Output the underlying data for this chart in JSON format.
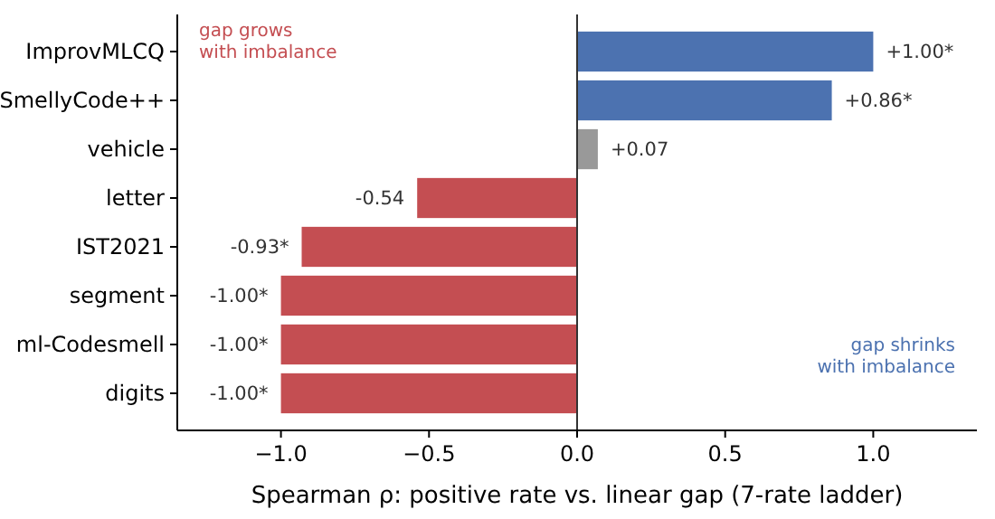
{
  "chart_data": {
    "type": "bar",
    "orientation": "horizontal",
    "categories": [
      "ImprovMLCQ",
      "SmellyCode++",
      "vehicle",
      "letter",
      "IST2021",
      "segment",
      "ml-Codesmell",
      "digits"
    ],
    "values": [
      1.0,
      0.86,
      0.07,
      -0.54,
      -0.93,
      -1.0,
      -1.0,
      -1.0
    ],
    "colors": [
      "#4c72b0",
      "#4c72b0",
      "#999999",
      "#c44e52",
      "#c44e52",
      "#c44e52",
      "#c44e52",
      "#c44e52"
    ],
    "value_labels": [
      "+1.00*",
      "+0.86*",
      "+0.07",
      "-0.54",
      "-0.93*",
      "-1.00*",
      "-1.00*",
      "-1.00*"
    ],
    "xlim": [
      -1.35,
      1.35
    ],
    "xticks": [
      {
        "value": -1,
        "label": "−1.0"
      },
      {
        "value": -0.5,
        "label": "−0.5"
      },
      {
        "value": 0,
        "label": "0.0"
      },
      {
        "value": 0.5,
        "label": "0.5"
      },
      {
        "value": 1,
        "label": "1.0"
      }
    ],
    "xlabel": "Spearman ρ: positive rate vs. linear gap (7-rate ladder)",
    "ref_lines": [
      {
        "axis": "x",
        "value": 0,
        "color": "#333333"
      }
    ],
    "annotations": [
      "gap grows\nwith imbalance",
      "gap shrinks\nwith imbalance"
    ],
    "grid": false
  }
}
